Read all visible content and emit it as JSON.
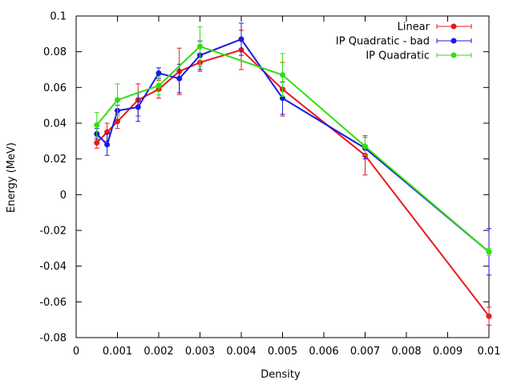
{
  "chart_data": {
    "type": "line",
    "title": "",
    "xlabel": "Density",
    "ylabel": "Energy (MeV)",
    "xlim": [
      0,
      0.01
    ],
    "ylim": [
      -0.08,
      0.1
    ],
    "xticks": [
      0,
      0.001,
      0.002,
      0.003,
      0.004,
      0.005,
      0.006,
      0.007,
      0.008,
      0.009,
      0.01
    ],
    "xtick_labels": [
      "0",
      "0.001",
      "0.002",
      "0.003",
      "0.004",
      "0.005",
      "0.006",
      "0.007",
      "0.008",
      "0.009",
      "0.01"
    ],
    "yticks": [
      -0.08,
      -0.06,
      -0.04,
      -0.02,
      0,
      0.02,
      0.04,
      0.06,
      0.08,
      0.1
    ],
    "ytick_labels": [
      "-0.08",
      "-0.06",
      "-0.04",
      "-0.02",
      "0",
      "0.02",
      "0.04",
      "0.06",
      "0.08",
      "0.1"
    ],
    "grid": false,
    "legend_position": "top-right",
    "series": [
      {
        "name": "Linear",
        "color": "#e8191b",
        "points": [
          {
            "x": 0.0005,
            "y": 0.029,
            "err": 0.003
          },
          {
            "x": 0.00075,
            "y": 0.035,
            "err": 0.005
          },
          {
            "x": 0.001,
            "y": 0.041,
            "err": 0.004
          },
          {
            "x": 0.0015,
            "y": 0.053,
            "err": 0.009
          },
          {
            "x": 0.002,
            "y": 0.059,
            "err": 0.005
          },
          {
            "x": 0.0025,
            "y": 0.069,
            "err": 0.013
          },
          {
            "x": 0.003,
            "y": 0.074,
            "err": 0.005
          },
          {
            "x": 0.004,
            "y": 0.081,
            "err": 0.011
          },
          {
            "x": 0.005,
            "y": 0.059,
            "err": 0.015
          },
          {
            "x": 0.007,
            "y": 0.022,
            "err": 0.011
          },
          {
            "x": 0.01,
            "y": -0.068,
            "err": 0.005
          }
        ]
      },
      {
        "name": "IP Quadratic - bad",
        "color": "#1a1ae0",
        "points": [
          {
            "x": 0.0005,
            "y": 0.034,
            "err": 0.003
          },
          {
            "x": 0.00075,
            "y": 0.028,
            "err": 0.006
          },
          {
            "x": 0.001,
            "y": 0.047,
            "err": 0.003
          },
          {
            "x": 0.0015,
            "y": 0.049,
            "err": 0.008
          },
          {
            "x": 0.002,
            "y": 0.068,
            "err": 0.003
          },
          {
            "x": 0.0025,
            "y": 0.065,
            "err": 0.008
          },
          {
            "x": 0.003,
            "y": 0.078,
            "err": 0.008
          },
          {
            "x": 0.004,
            "y": 0.087,
            "err": 0.009
          },
          {
            "x": 0.005,
            "y": 0.054,
            "err": 0.009
          },
          {
            "x": 0.007,
            "y": 0.026,
            "err": 0.006
          },
          {
            "x": 0.01,
            "y": -0.032,
            "err": 0.013
          }
        ]
      },
      {
        "name": "IP Quadratic",
        "color": "#33dd11",
        "points": [
          {
            "x": 0.0005,
            "y": 0.039,
            "err": 0.007
          },
          {
            "x": 0.001,
            "y": 0.053,
            "err": 0.009
          },
          {
            "x": 0.002,
            "y": 0.061,
            "err": 0.005
          },
          {
            "x": 0.003,
            "y": 0.083,
            "err": 0.011
          },
          {
            "x": 0.005,
            "y": 0.067,
            "err": 0.012
          },
          {
            "x": 0.007,
            "y": 0.027,
            "err": 0.005
          },
          {
            "x": 0.01,
            "y": -0.032,
            "err": 0.002
          }
        ]
      }
    ]
  }
}
